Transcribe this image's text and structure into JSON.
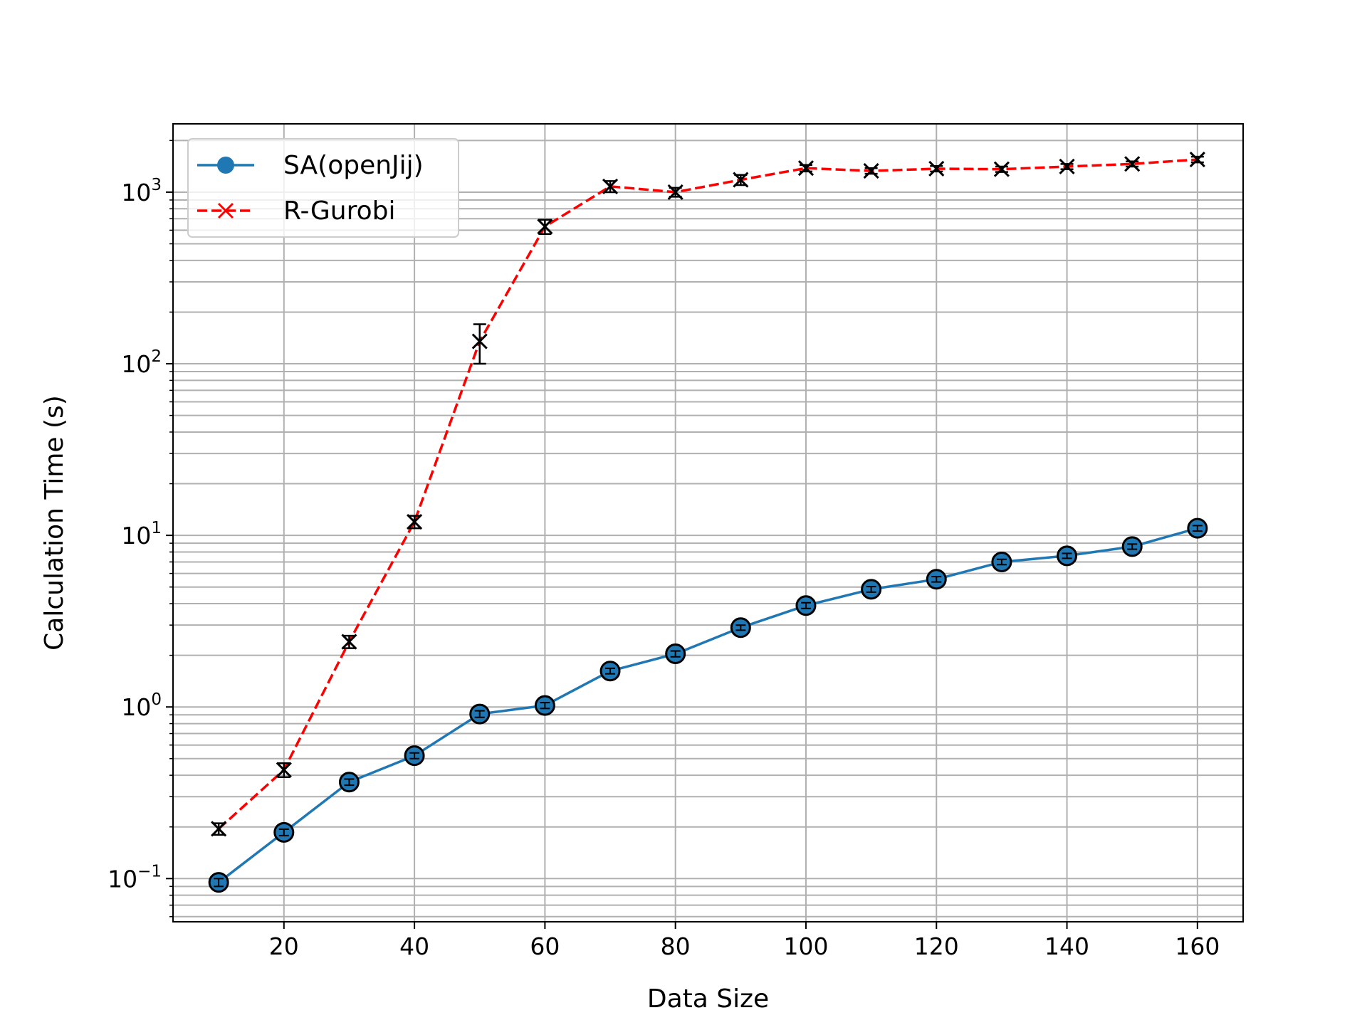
{
  "chart_data": {
    "type": "line",
    "xlabel": "Data Size",
    "ylabel": "Calculation Time (s)",
    "y_scale": "log",
    "xlim": [
      3,
      167
    ],
    "ylim": [
      0.056,
      2500
    ],
    "x_ticks": [
      20,
      40,
      60,
      80,
      100,
      120,
      140,
      160
    ],
    "y_ticks": [
      {
        "value": 0.1,
        "base": "10",
        "exp": "−1"
      },
      {
        "value": 1,
        "base": "10",
        "exp": "0"
      },
      {
        "value": 10,
        "base": "10",
        "exp": "1"
      },
      {
        "value": 100,
        "base": "10",
        "exp": "2"
      },
      {
        "value": 1000,
        "base": "10",
        "exp": "3"
      }
    ],
    "grid": true,
    "legend_position": "upper-left",
    "x": [
      10,
      20,
      30,
      40,
      50,
      60,
      70,
      80,
      90,
      100,
      110,
      120,
      130,
      140,
      150,
      160
    ],
    "series": [
      {
        "name": "SA(openJij)",
        "color": "#1f77b4",
        "line_style": "solid",
        "marker": "circle",
        "values": [
          0.095,
          0.186,
          0.365,
          0.52,
          0.91,
          1.02,
          1.62,
          2.04,
          2.9,
          3.9,
          4.85,
          5.55,
          7.0,
          7.6,
          8.6,
          11.0
        ],
        "errors": [
          0.005,
          0.008,
          0.015,
          0.02,
          0.04,
          0.04,
          0.06,
          0.08,
          0.1,
          0.15,
          0.18,
          0.2,
          0.25,
          0.25,
          0.3,
          0.4
        ]
      },
      {
        "name": "R-Gurobi",
        "color": "#ff0000",
        "line_style": "dashed",
        "marker": "x",
        "values": [
          0.195,
          0.43,
          2.4,
          12.0,
          135,
          630,
          1080,
          1000,
          1180,
          1380,
          1330,
          1370,
          1360,
          1410,
          1460,
          1550
        ],
        "errors": [
          0.015,
          0.04,
          0.2,
          1.0,
          35,
          60,
          80,
          60,
          80,
          60,
          50,
          50,
          50,
          50,
          50,
          60
        ]
      }
    ]
  }
}
